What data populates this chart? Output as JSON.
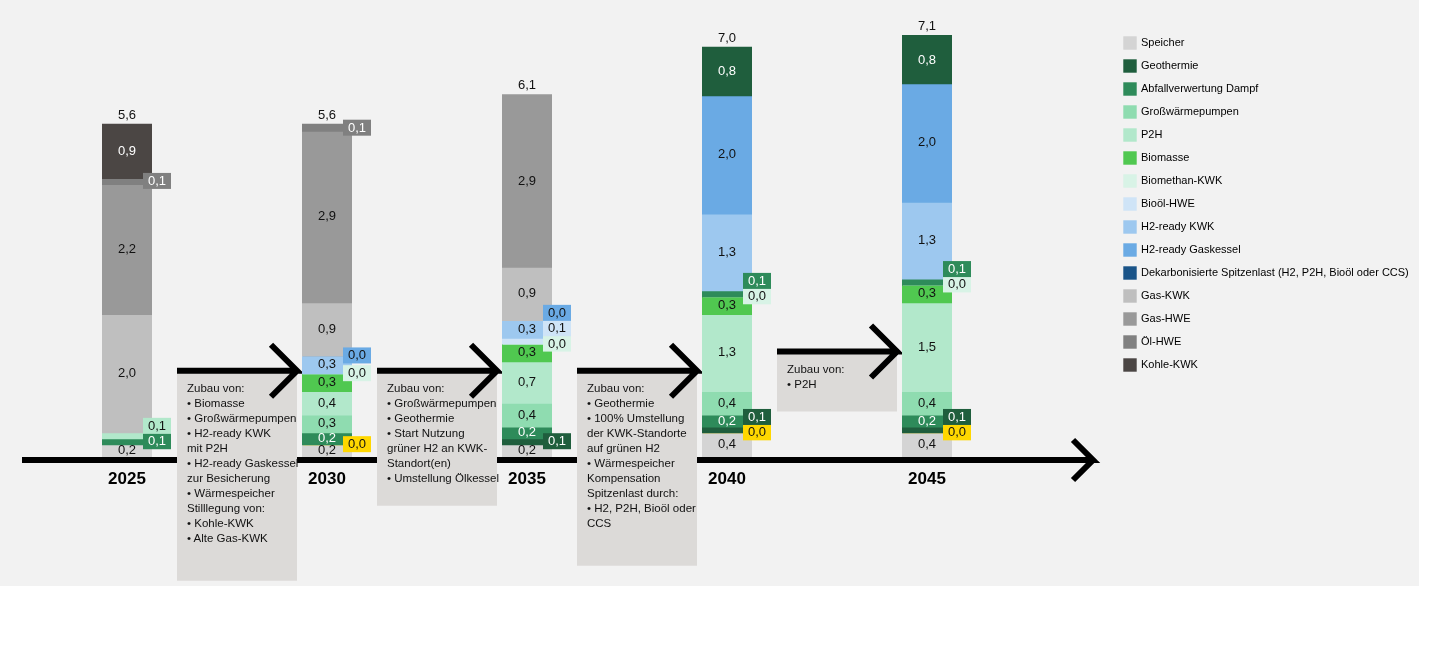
{
  "chart_data": {
    "type": "bar",
    "stacked": true,
    "categories": [
      "2025",
      "2030",
      "2035",
      "2040",
      "2045"
    ],
    "series": [
      {
        "name": "Speicher",
        "color": "#d4d4d4",
        "values": [
          0.2,
          0.2,
          0.2,
          0.4,
          0.4
        ],
        "value_labels": [
          "0,2",
          "0,2",
          "0,2",
          "0,4",
          "0,4"
        ]
      },
      {
        "color": "#ffd700",
        "values": [
          null,
          0.0,
          null,
          0.0,
          0.0
        ],
        "value_labels": [
          null,
          "0,0",
          null,
          "0,0",
          "0,0"
        ]
      },
      {
        "name": "Geothermie",
        "color": "#1f5e3d",
        "values": [
          null,
          null,
          0.1,
          0.1,
          0.1
        ],
        "value_labels": [
          null,
          null,
          "0,1",
          "0,1",
          "0,1"
        ]
      },
      {
        "name": "Abfallverwertung Dampf",
        "color": "#2e8b5a",
        "values": [
          0.1,
          0.2,
          0.2,
          0.2,
          0.2
        ],
        "value_labels": [
          "0,1",
          "0,2",
          "0,2",
          "0,2",
          "0,2"
        ]
      },
      {
        "name": "Großwärmepumpen",
        "color": "#8fdcb0",
        "values": [
          null,
          0.3,
          0.4,
          0.4,
          0.4
        ],
        "value_labels": [
          null,
          "0,3",
          "0,4",
          "0,4",
          "0,4"
        ]
      },
      {
        "name": "P2H",
        "color": "#b2e8cb",
        "values": [
          0.1,
          0.4,
          0.7,
          1.3,
          1.5
        ],
        "value_labels": [
          "0,1",
          "0,4",
          "0,7",
          "1,3",
          "1,5"
        ]
      },
      {
        "name": "Biomasse",
        "color": "#50c850",
        "values": [
          null,
          0.3,
          0.3,
          0.3,
          0.3
        ],
        "value_labels": [
          null,
          "0,3",
          "0,3",
          "0,3",
          "0,3"
        ]
      },
      {
        "name": "Biomethan-KWK",
        "color": "#d8f3e6",
        "values": [
          null,
          0.0,
          0.0,
          0.0,
          0.0
        ],
        "value_labels": [
          null,
          "0,0",
          "0,0",
          "0,0",
          "0,0"
        ]
      },
      {
        "color": "#2e8b5a",
        "values": [
          null,
          null,
          null,
          0.1,
          0.1
        ],
        "value_labels": [
          null,
          null,
          null,
          "0,1",
          "0,1"
        ]
      },
      {
        "name": "Bioöl-HWE",
        "color": "#cfe4f7",
        "values": [
          null,
          null,
          0.1,
          null,
          null
        ],
        "value_labels": [
          null,
          null,
          "0,1",
          null,
          null
        ]
      },
      {
        "name": "H2-ready KWK",
        "color": "#9dc8ef",
        "values": [
          null,
          0.3,
          0.3,
          1.3,
          1.3
        ],
        "value_labels": [
          null,
          "0,3",
          "0,3",
          "1,3",
          "1,3"
        ]
      },
      {
        "name": "H2-ready Gaskessel",
        "color": "#6aaae4",
        "values": [
          null,
          0.0,
          0.0,
          2.0,
          2.0
        ],
        "value_labels": [
          null,
          "0,0",
          "0,0",
          "2,0",
          "2,0"
        ]
      },
      {
        "name": "Dekarbonisierte Spitzenlast (H2, P2H, Bioöl oder CCS)",
        "color": "#1a5488",
        "values": [
          null,
          null,
          null,
          null,
          null
        ]
      },
      {
        "name": "Gas-KWK",
        "color": "#bfbfbf",
        "values": [
          2.0,
          0.9,
          0.9,
          null,
          null
        ],
        "value_labels": [
          "2,0",
          "0,9",
          "0,9",
          null,
          null
        ]
      },
      {
        "name": "Gas-HWE",
        "color": "#999999",
        "values": [
          2.2,
          2.9,
          2.9,
          null,
          null
        ],
        "value_labels": [
          "2,2",
          "2,9",
          "2,9",
          null,
          null
        ]
      },
      {
        "name": "Öl-HWE",
        "color": "#808080",
        "values": [
          0.1,
          0.1,
          null,
          null,
          null
        ],
        "value_labels": [
          "0,1",
          "0,1",
          null,
          null,
          null
        ]
      },
      {
        "name": "Kohle-KWK",
        "color": "#4b4644",
        "values": [
          0.9,
          null,
          null,
          null,
          null
        ],
        "value_labels": [
          "0,9",
          null,
          null,
          null,
          null
        ]
      },
      {
        "color": "#1f5e3d",
        "values": [
          null,
          null,
          null,
          0.8,
          0.8
        ],
        "value_labels": [
          null,
          null,
          null,
          "0,8",
          "0,8"
        ]
      }
    ],
    "totals": [
      "5,6",
      "5,6",
      "6,1",
      "7,0",
      "7,1"
    ],
    "tick_labels": "x",
    "grid": false,
    "legend": "right",
    "annotations": [
      "Zubau von:\n• Biomasse\n• Großwärmepumpen\n• H2-ready KWK\n   mit P2H\n• H2-ready Gaskessel\n   zur Besicherung\n• Wärmespeicher\n\nStilllegung von:\n• Kohle-KWK\n• Alte Gas-KWK",
      "Zubau von:\n• Großwärmepumpen\n• Geothermie\n• Start Nutzung\n   grüner H2 an KWK-\n   Standort(en)\n• Umstellung Ölkessel",
      "Zubau von:\n• Geothermie\n• 100% Umstellung\n   der KWK-Standorte\n   auf grünen H2\n• Wärmespeicher\n\nKompensation\nSpitzenlast durch:\n• H2, P2H, Bioöl oder\n   CCS",
      "Zubau von:\n• P2H"
    ]
  }
}
